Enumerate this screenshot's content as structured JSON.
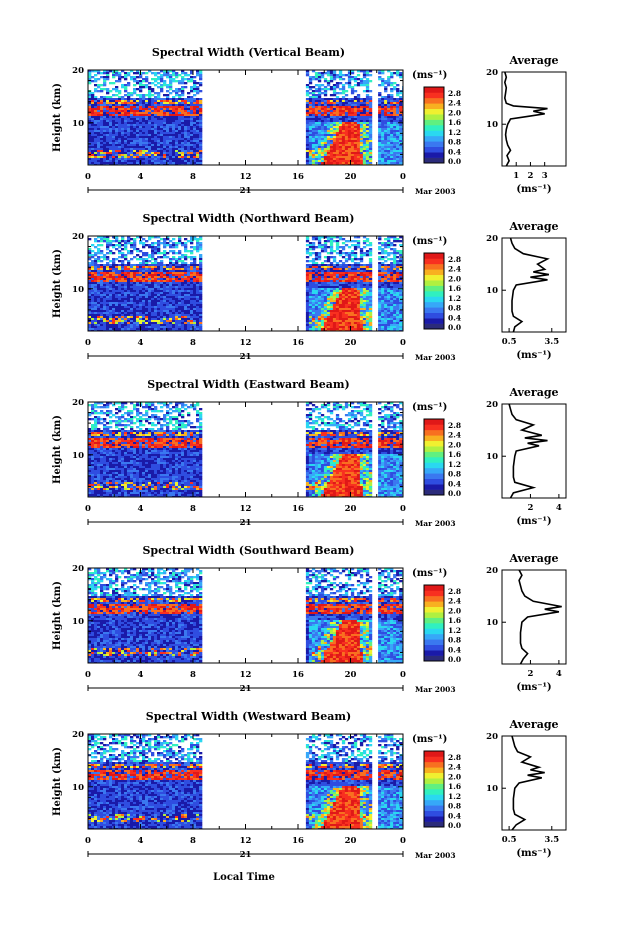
{
  "xlabel": "Local Time",
  "date_label": "Mar 2003",
  "day_label": "21",
  "height_label": "Height (km)",
  "units_label": "(ms⁻¹)",
  "avg_title": "Average",
  "avg_units": "(ms⁻¹)",
  "colorscale": {
    "ticks": [
      "2.8",
      "2.4",
      "2.0",
      "1.6",
      "1.2",
      "0.8",
      "0.4",
      "0.0"
    ],
    "colors": [
      "#2b2b7a",
      "#1a1aa8",
      "#2f4de0",
      "#3a78f0",
      "#36a8f8",
      "#2ad8f0",
      "#30f0c0",
      "#60f080",
      "#b0f040",
      "#f0f030",
      "#f8b020",
      "#f87020",
      "#f83020",
      "#e01818"
    ]
  },
  "chart_data": [
    {
      "type": "heatmap",
      "title": "Spectral Width (Vertical Beam)",
      "x_ticks": [
        "0",
        "4",
        "8",
        "12",
        "16",
        "20",
        "0"
      ],
      "y_ticks": [
        "20",
        "10"
      ],
      "ylim": [
        2,
        20
      ],
      "avg_x_ticks": [
        "1",
        "2",
        "3"
      ],
      "avg_profile": [
        [
          0.3,
          2
        ],
        [
          0.5,
          3
        ],
        [
          0.35,
          4
        ],
        [
          0.6,
          5
        ],
        [
          0.4,
          6
        ],
        [
          0.3,
          7
        ],
        [
          0.25,
          8
        ],
        [
          0.3,
          9
        ],
        [
          0.4,
          10
        ],
        [
          0.6,
          11
        ],
        [
          1.8,
          11.5
        ],
        [
          3.0,
          12
        ],
        [
          2.2,
          12.5
        ],
        [
          3.2,
          13
        ],
        [
          0.8,
          13.5
        ],
        [
          0.3,
          14
        ],
        [
          0.2,
          15
        ],
        [
          0.25,
          16
        ],
        [
          0.3,
          17
        ],
        [
          0.2,
          18
        ],
        [
          0.3,
          19
        ],
        [
          0.2,
          20
        ]
      ]
    },
    {
      "type": "heatmap",
      "title": "Spectral Width (Northward Beam)",
      "x_ticks": [
        "0",
        "4",
        "8",
        "12",
        "16",
        "20",
        "0"
      ],
      "y_ticks": [
        "20",
        "10"
      ],
      "ylim": [
        2,
        20
      ],
      "avg_x_ticks": [
        "0.5",
        "3.5"
      ],
      "avg_profile": [
        [
          0.8,
          2
        ],
        [
          0.9,
          3
        ],
        [
          1.4,
          4
        ],
        [
          0.8,
          5
        ],
        [
          0.7,
          6
        ],
        [
          0.7,
          8
        ],
        [
          0.8,
          10
        ],
        [
          1.0,
          11
        ],
        [
          3.2,
          12
        ],
        [
          2.0,
          12.5
        ],
        [
          3.3,
          13
        ],
        [
          2.2,
          13.5
        ],
        [
          3.0,
          14
        ],
        [
          2.5,
          15
        ],
        [
          3.2,
          16
        ],
        [
          1.5,
          17
        ],
        [
          0.9,
          18
        ],
        [
          0.7,
          19
        ],
        [
          0.6,
          20
        ]
      ]
    },
    {
      "type": "heatmap",
      "title": "Spectral Width (Eastward Beam)",
      "x_ticks": [
        "0",
        "4",
        "8",
        "12",
        "16",
        "20",
        "0"
      ],
      "y_ticks": [
        "20",
        "10"
      ],
      "ylim": [
        2,
        20
      ],
      "avg_x_ticks": [
        "2",
        "4"
      ],
      "avg_profile": [
        [
          0.6,
          2
        ],
        [
          0.8,
          3
        ],
        [
          2.2,
          4
        ],
        [
          0.9,
          5
        ],
        [
          0.8,
          6
        ],
        [
          0.8,
          8
        ],
        [
          0.9,
          10
        ],
        [
          1.0,
          11
        ],
        [
          2.6,
          12
        ],
        [
          1.8,
          12.5
        ],
        [
          3.2,
          13
        ],
        [
          1.6,
          13.5
        ],
        [
          2.8,
          14
        ],
        [
          1.4,
          15
        ],
        [
          2.2,
          16
        ],
        [
          1.0,
          17
        ],
        [
          0.7,
          18
        ],
        [
          0.6,
          19
        ],
        [
          0.5,
          20
        ]
      ]
    },
    {
      "type": "heatmap",
      "title": "Spectral Width (Southward Beam)",
      "x_ticks": [
        "0",
        "4",
        "8",
        "12",
        "16",
        "20",
        "0"
      ],
      "y_ticks": [
        "20",
        "10"
      ],
      "ylim": [
        2,
        20
      ],
      "avg_x_ticks": [
        "2",
        "4"
      ],
      "avg_profile": [
        [
          1.3,
          2
        ],
        [
          1.5,
          3
        ],
        [
          1.8,
          4
        ],
        [
          1.4,
          5
        ],
        [
          1.3,
          6
        ],
        [
          1.3,
          8
        ],
        [
          1.4,
          10
        ],
        [
          1.8,
          11
        ],
        [
          4.0,
          12
        ],
        [
          3.0,
          12.5
        ],
        [
          4.2,
          13
        ],
        [
          2.2,
          14
        ],
        [
          1.6,
          15
        ],
        [
          1.4,
          16
        ],
        [
          1.3,
          17
        ],
        [
          1.2,
          18
        ],
        [
          1.4,
          19
        ],
        [
          1.2,
          20
        ]
      ]
    },
    {
      "type": "heatmap",
      "title": "Spectral Width (Westward Beam)",
      "x_ticks": [
        "0",
        "4",
        "8",
        "12",
        "16",
        "20",
        "0"
      ],
      "y_ticks": [
        "20",
        "10"
      ],
      "ylim": [
        2,
        20
      ],
      "avg_x_ticks": [
        "0.5",
        "3.5"
      ],
      "avg_profile": [
        [
          0.7,
          2
        ],
        [
          1.0,
          3
        ],
        [
          1.6,
          4
        ],
        [
          0.9,
          5
        ],
        [
          0.8,
          6
        ],
        [
          0.8,
          8
        ],
        [
          0.9,
          10
        ],
        [
          1.2,
          11
        ],
        [
          2.8,
          12
        ],
        [
          1.8,
          12.5
        ],
        [
          3.0,
          13
        ],
        [
          2.0,
          13.5
        ],
        [
          2.6,
          14
        ],
        [
          1.4,
          15
        ],
        [
          2.0,
          16
        ],
        [
          1.1,
          17
        ],
        [
          0.9,
          18
        ],
        [
          0.8,
          19
        ],
        [
          0.7,
          20
        ]
      ]
    }
  ]
}
